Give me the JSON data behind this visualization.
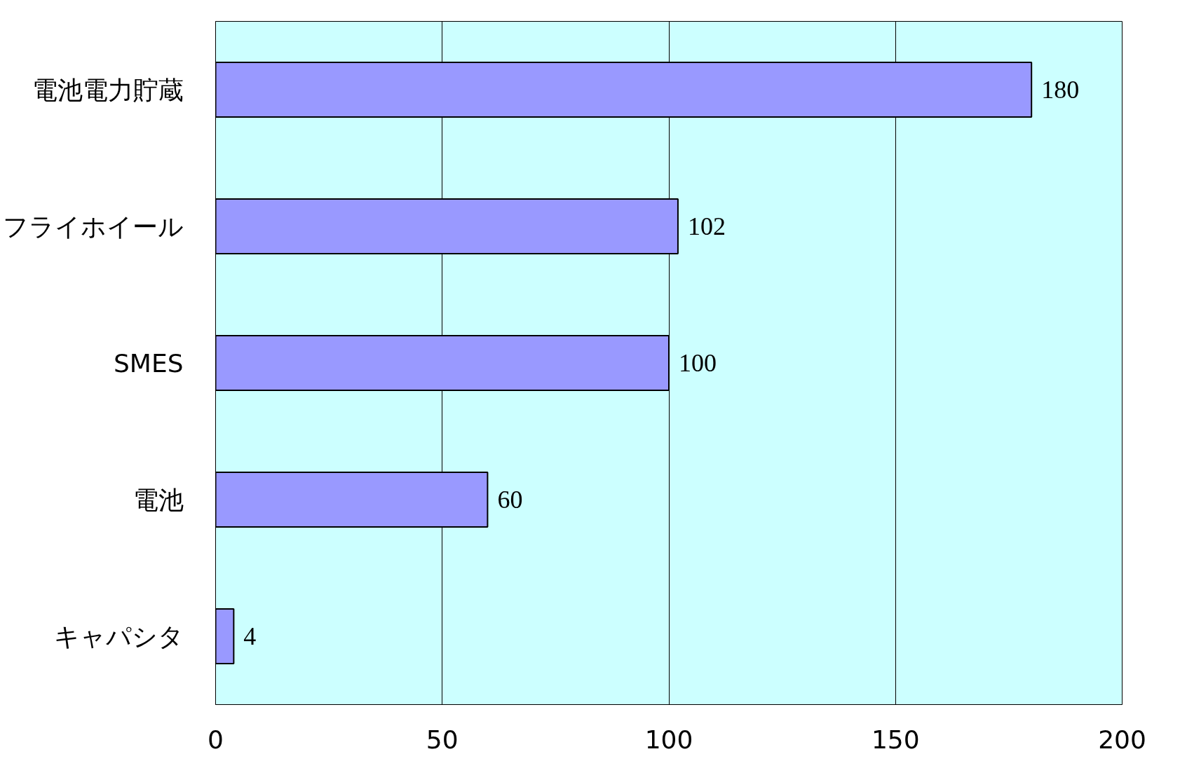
{
  "chart_data": {
    "type": "bar",
    "orientation": "horizontal",
    "categories": [
      "電池電力貯蔵",
      "フライホイール",
      "SMES",
      "電池",
      "キャパシタ"
    ],
    "values": [
      180,
      102,
      100,
      60,
      4
    ],
    "color": "#9999ff",
    "xlim": [
      0,
      200
    ],
    "xticks": [
      0,
      50,
      100,
      150,
      200
    ],
    "grid": "x",
    "data_labels": true
  }
}
